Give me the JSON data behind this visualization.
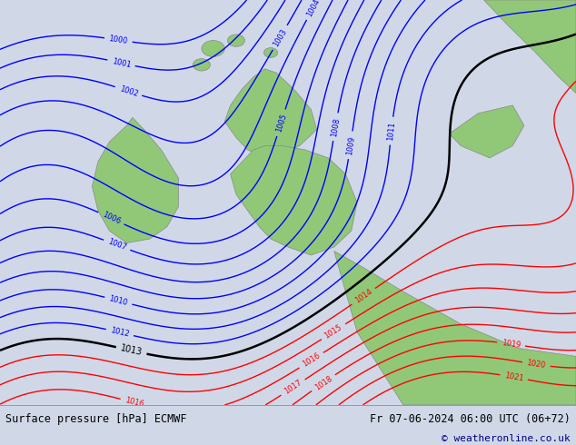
{
  "title_left": "Surface pressure [hPa] ECMWF",
  "title_right": "Fr 07-06-2024 06:00 UTC (06+72)",
  "copyright": "© weatheronline.co.uk",
  "bg_color": "#d0d8e8",
  "land_color": "#90c878",
  "land_edge_color": "#888888",
  "bottom_bar_color": "#e8e8e8",
  "black_isobar": 1013,
  "blue_range": [
    1000,
    1012
  ],
  "red_range": [
    1014,
    1021
  ],
  "copyright_color": "#000080"
}
